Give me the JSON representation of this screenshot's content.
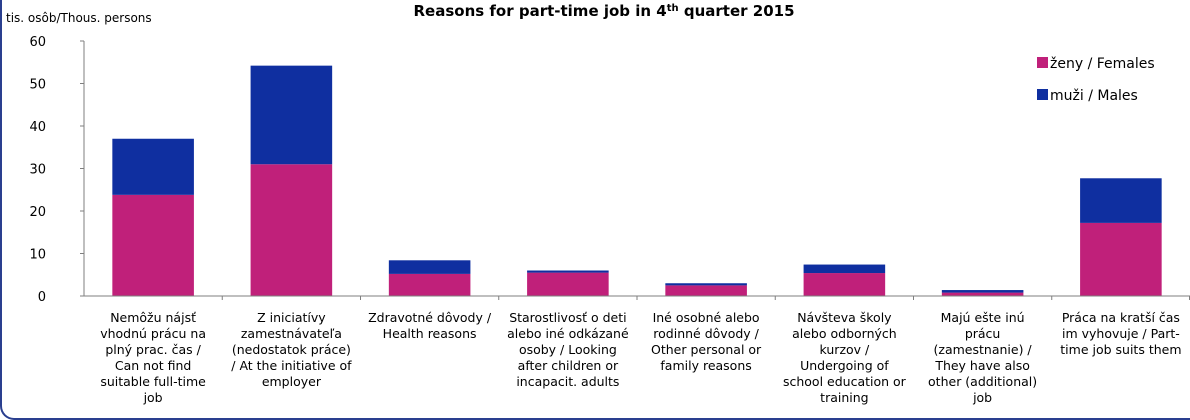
{
  "chart_data": {
    "type": "bar",
    "stacked": true,
    "title": "Reasons for part-time job in 4",
    "title_superscript": "th",
    "title_suffix": " quarter 2015",
    "ylabel": "tis. osôb/Thous. persons",
    "ylim": [
      0,
      60
    ],
    "yticks": [
      0,
      10,
      20,
      30,
      40,
      50,
      60
    ],
    "grid": false,
    "legend_position": "top-right",
    "categories": [
      [
        "Nemôžu nájsť",
        "vhodnú prácu na",
        "plný prac. čas /",
        "Can not find",
        "suitable full-time",
        "job"
      ],
      [
        "Z iniciatívy",
        "zamestnávateľa",
        "(nedostatok práce)",
        "/ At the initiative of",
        "employer"
      ],
      [
        "Zdravotné dôvody /",
        "Health reasons"
      ],
      [
        "Starostlivosť o deti",
        "alebo iné odkázané",
        "osoby / Looking",
        "after children or",
        "incapacit. adults"
      ],
      [
        "Iné osobné alebo",
        "rodinné dôvody /",
        "Other personal or",
        "family reasons"
      ],
      [
        "Návšteva školy",
        "alebo odborných",
        "kurzov /",
        "Undergoing of",
        "school education or",
        "training"
      ],
      [
        "Majú ešte inú",
        "prácu",
        "(zamestnanie) /",
        "They have also",
        "other (additional)",
        "job"
      ],
      [
        "Práca na kratší čas",
        "im vyhovuje / Part-",
        "time job suits them"
      ]
    ],
    "series": [
      {
        "name": "ženy / Females",
        "color": "#c0207a",
        "values": [
          23.8,
          31.0,
          5.2,
          5.5,
          2.5,
          5.4,
          0.8,
          17.2
        ]
      },
      {
        "name": "muži / Males",
        "color": "#0f2fa0",
        "values": [
          13.2,
          23.2,
          3.2,
          0.5,
          0.5,
          2.0,
          0.6,
          10.5
        ]
      }
    ]
  }
}
